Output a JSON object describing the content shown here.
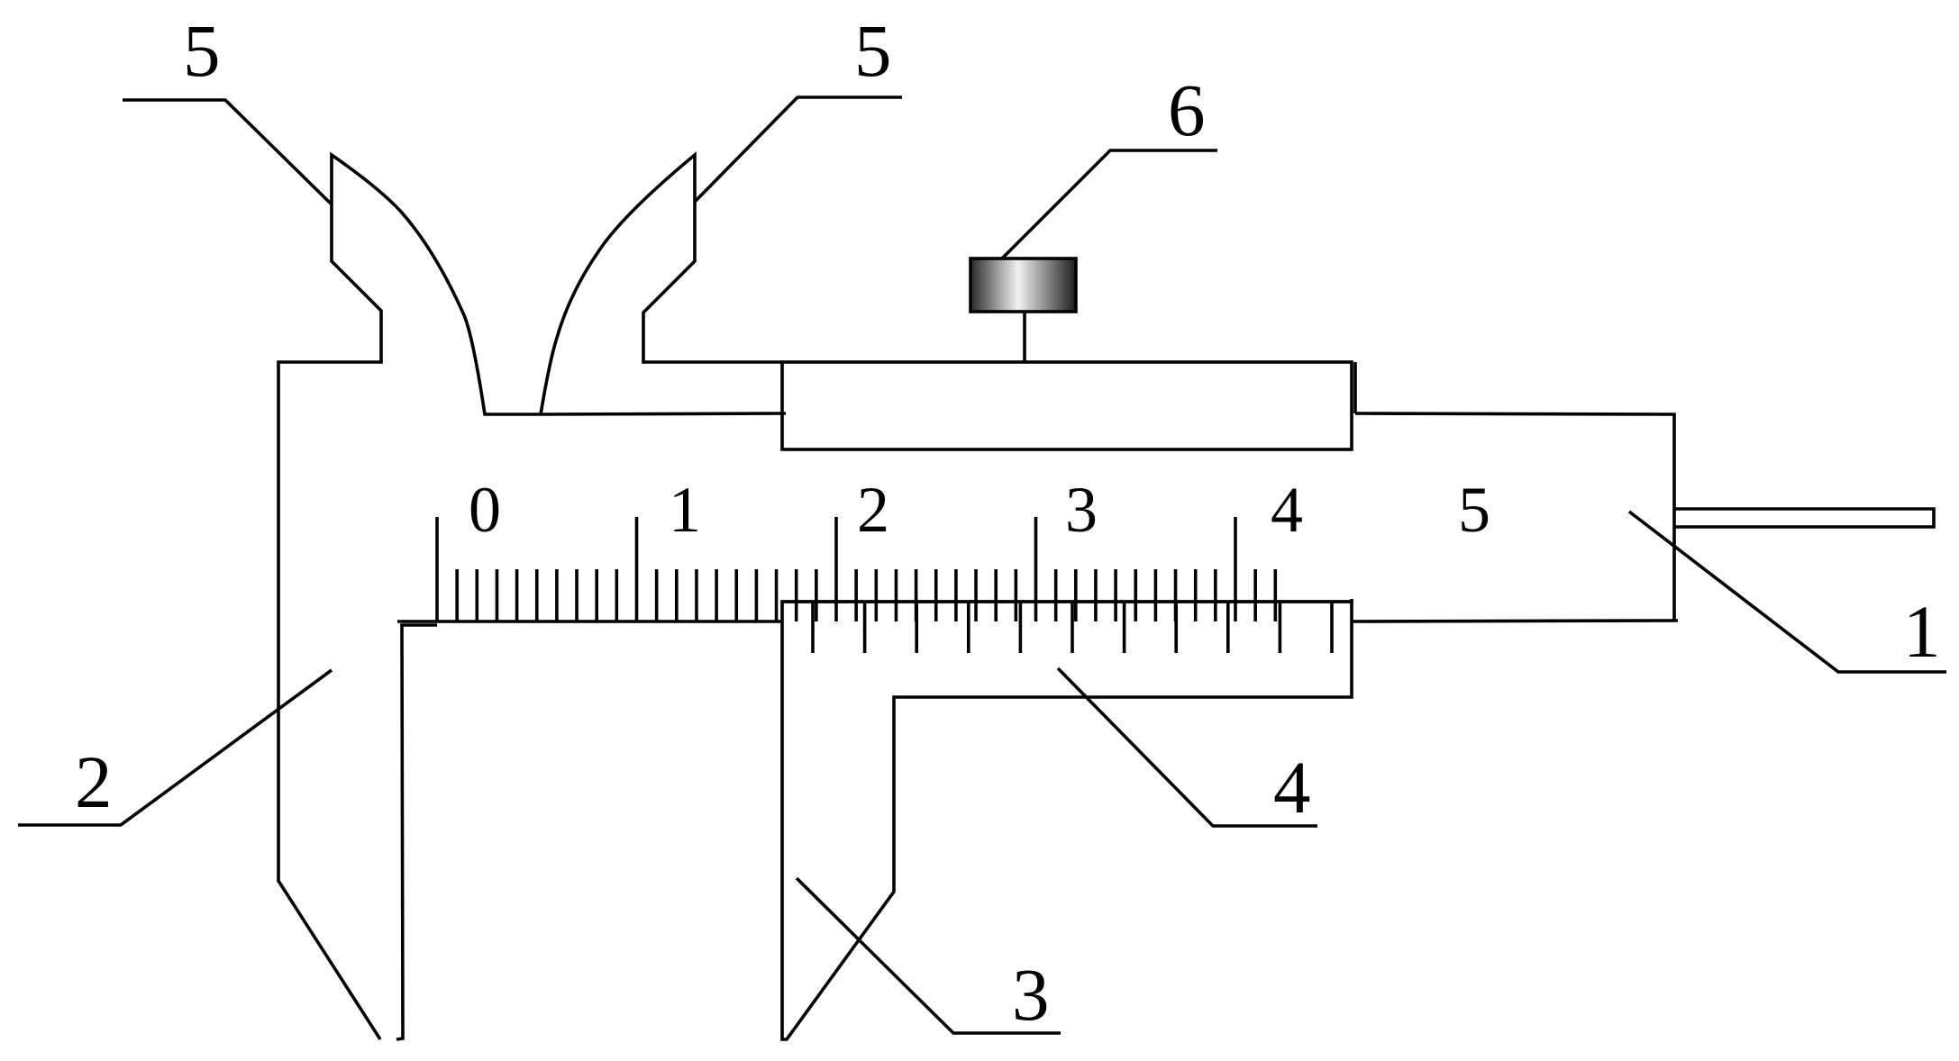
{
  "diagram": {
    "main_scale_numbers": [
      "0",
      "1",
      "2",
      "3",
      "4",
      "5"
    ],
    "callouts": {
      "label_1": "1",
      "label_2": "2",
      "label_3": "3",
      "label_4": "4",
      "label_5_left": "5",
      "label_5_right": "5",
      "label_6": "6"
    }
  }
}
